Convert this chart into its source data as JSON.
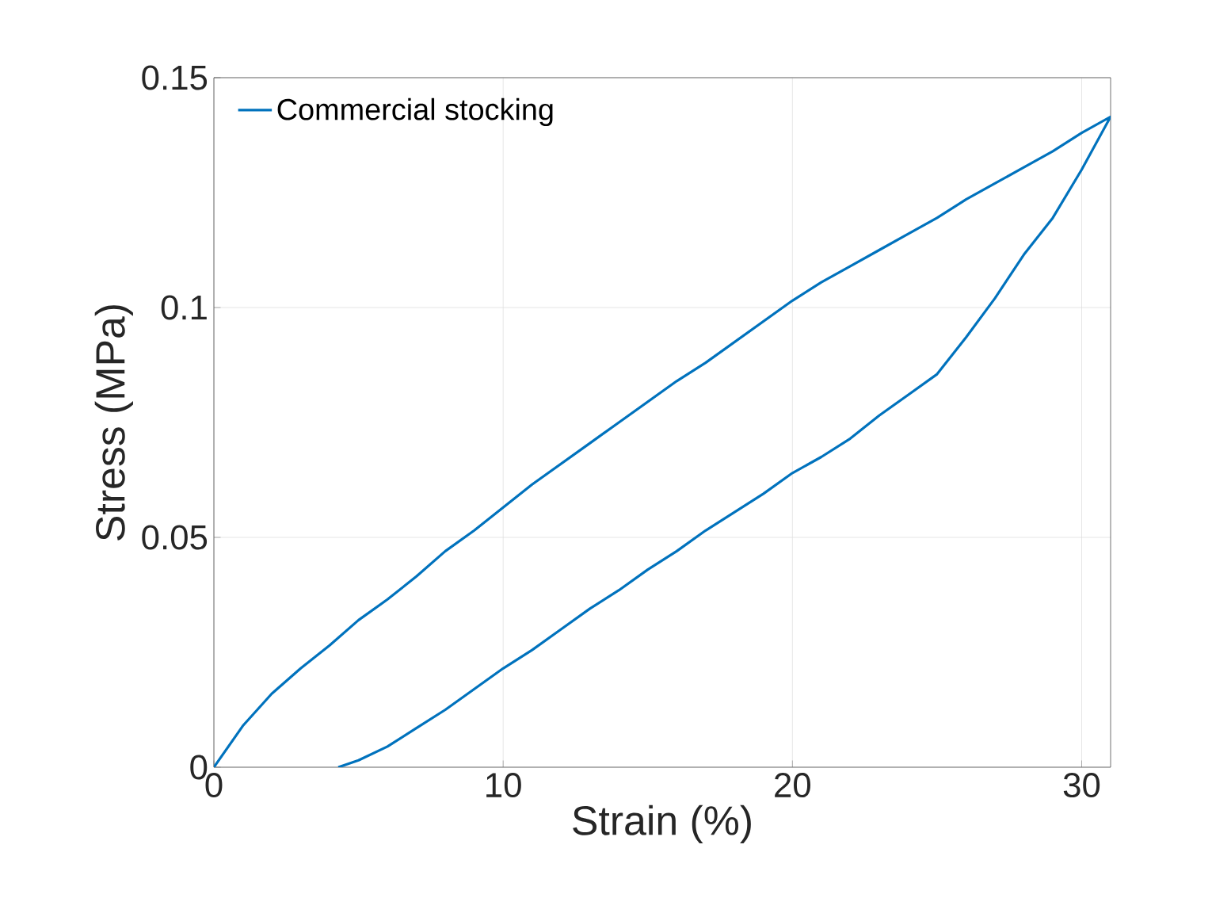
{
  "chart_data": {
    "type": "line",
    "xlabel": "Strain (%)",
    "ylabel": "Stress (MPa)",
    "xlim": [
      0,
      31
    ],
    "ylim": [
      0,
      0.15
    ],
    "xticks": [
      0,
      10,
      20,
      30
    ],
    "yticks": [
      0,
      0.05,
      0.1,
      0.15
    ],
    "grid": true,
    "legend": "top left",
    "line_style": "solid",
    "marker": "none",
    "series": [
      {
        "name": "Commercial stocking",
        "color": "#0072bd",
        "x": [
          0,
          1,
          2,
          3,
          4,
          5,
          6,
          7,
          8,
          9,
          11,
          13,
          14,
          16,
          17,
          18,
          20,
          21,
          22,
          23,
          24,
          25,
          26,
          27,
          28,
          29,
          30,
          31,
          30,
          29,
          28,
          27,
          26,
          25,
          24,
          23,
          22,
          21,
          20,
          19,
          18,
          17,
          16,
          15,
          14,
          13,
          12,
          11,
          10,
          8,
          7,
          6,
          5,
          4.3
        ],
        "values": [
          0,
          0.009,
          0.016,
          0.0215,
          0.0265,
          0.032,
          0.0365,
          0.0415,
          0.047,
          0.0515,
          0.0615,
          0.0705,
          0.075,
          0.084,
          0.088,
          0.0925,
          0.1015,
          0.1055,
          0.109,
          0.1125,
          0.116,
          0.1195,
          0.1235,
          0.127,
          0.1305,
          0.134,
          0.138,
          0.1415,
          0.13,
          0.1195,
          0.1115,
          0.102,
          0.0935,
          0.0855,
          0.081,
          0.0765,
          0.0715,
          0.0675,
          0.064,
          0.0595,
          0.0555,
          0.0515,
          0.047,
          0.043,
          0.0385,
          0.0345,
          0.03,
          0.0255,
          0.0215,
          0.0125,
          0.0085,
          0.0045,
          0.0015,
          0
        ]
      }
    ]
  }
}
